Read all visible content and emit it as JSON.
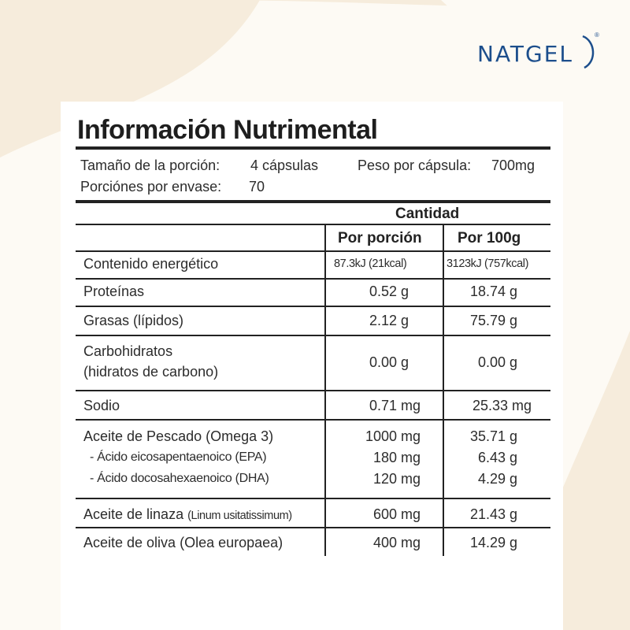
{
  "brand": {
    "logo_text": "NATGEL",
    "reg_mark": "®"
  },
  "title": "Información Nutrimental",
  "serving": {
    "size_label": "Tamaño de la porción:",
    "size_value": "4 cápsulas",
    "weight_label": "Peso por cápsula:",
    "weight_value": "700mg",
    "servings_label": "Porciónes por envase:",
    "servings_value": "70"
  },
  "table": {
    "header_group": "Cantidad",
    "col_per_serving": "Por porción",
    "col_per_100g": "Por 100g",
    "rows": [
      {
        "name": "Contenido energético",
        "per_serving": "87.3kJ (21kcal)",
        "per_100g": "3123kJ (757kcal)"
      },
      {
        "name": "Proteínas",
        "per_serving": "0.52 g",
        "per_100g": "18.74 g"
      },
      {
        "name": "Grasas (lípidos)",
        "per_serving": "2.12 g",
        "per_100g": "75.79 g"
      },
      {
        "name_line1": "Carbohidratos",
        "name_line2": "(hidratos de carbono)",
        "per_serving": "0.00 g",
        "per_100g": "0.00 g"
      },
      {
        "name": "Sodio",
        "per_serving": "0.71 mg",
        "per_100g": "25.33 mg"
      },
      {
        "name": "Aceite de Pescado (Omega 3)",
        "per_serving": "1000 mg",
        "per_100g": "35.71 g",
        "sub": [
          {
            "name": "- Ácido eicosapentaenoico (EPA)",
            "per_serving": "180 mg",
            "per_100g": "6.43 g"
          },
          {
            "name": "- Ácido docosahexaenoico (DHA)",
            "per_serving": "120 mg",
            "per_100g": "4.29 g"
          }
        ]
      },
      {
        "name": "Aceite de linaza",
        "name_suffix": "(Linum usitatissimum)",
        "per_serving": "600 mg",
        "per_100g": "21.43 g"
      },
      {
        "name": "Aceite de oliva (Olea europaea)",
        "per_serving": "400 mg",
        "per_100g": "14.29 g"
      }
    ]
  },
  "colors": {
    "brand_blue": "#1c4e8c",
    "background_cream": "#f6ecdc",
    "text_dark": "#2a2a2a"
  }
}
